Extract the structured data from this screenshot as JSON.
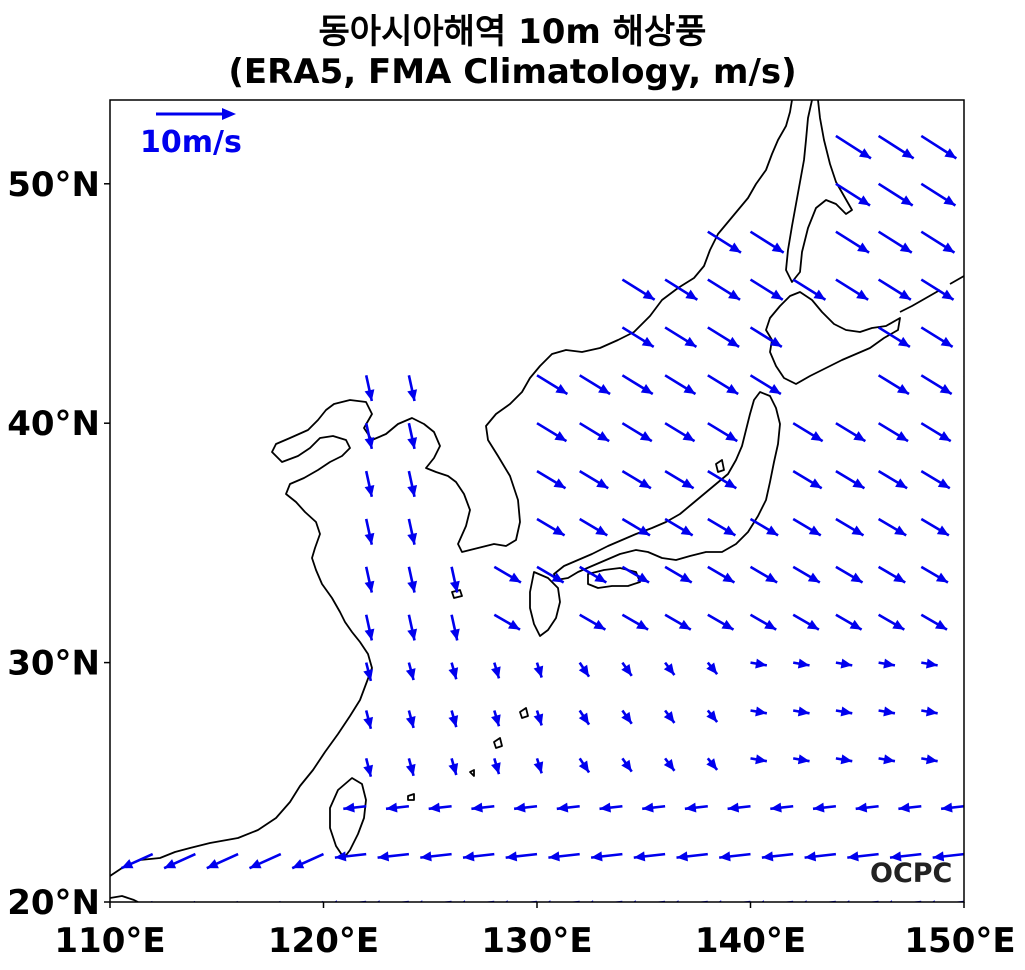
{
  "title": "동아시아해역 10m 해상풍",
  "subtitle": "(ERA5, FMA Climatology, m/s)",
  "reference_vector": {
    "label": "10m/s",
    "speed": 10
  },
  "logo": "OCPC",
  "colors": {
    "vector": "#0000ee",
    "coastline": "#000000",
    "frame": "#000000"
  },
  "chart_data": {
    "type": "vector-field",
    "units": "m/s",
    "xlim": [
      110,
      150
    ],
    "ylim": [
      20,
      53.5
    ],
    "x_ticks": [
      "110°E",
      "120°E",
      "130°E",
      "140°E",
      "150°E"
    ],
    "y_ticks": [
      "20°N",
      "30°N",
      "40°N",
      "50°N"
    ],
    "x_tick_values": [
      110,
      120,
      130,
      140,
      150
    ],
    "y_tick_values": [
      20,
      30,
      40,
      50
    ]
  }
}
